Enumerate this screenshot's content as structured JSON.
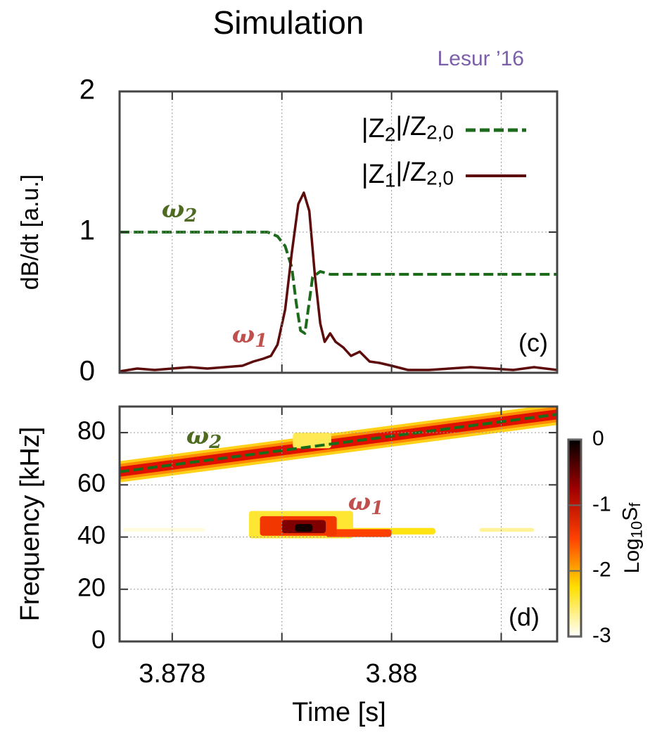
{
  "chart_data": [
    {
      "type": "line",
      "title": "Simulation",
      "subtitle": "Lesur ’16",
      "ylabel": "dB/dt [a.u.]",
      "panel_label": "(c)",
      "xlim": [
        3.87752,
        3.88151
      ],
      "xgrid": [
        3.878,
        3.879,
        3.88,
        3.881
      ],
      "ylim": [
        0,
        2
      ],
      "yticks": [
        0,
        1,
        2
      ],
      "grid": true,
      "legend": "upper right",
      "annotations": [
        {
          "text": "ω2",
          "color": "#4f6b22"
        },
        {
          "text": "ω1",
          "color": "#c0504d"
        }
      ],
      "series": [
        {
          "name": "|Z2|/Z2,0",
          "color": "#1b6b1b",
          "dashed": true,
          "x": [
            3.87752,
            3.87887,
            3.87896,
            3.87903,
            3.87909,
            3.87913,
            3.87917,
            3.87921,
            3.87924,
            3.87928,
            3.87935,
            3.87944,
            3.88151
          ],
          "values": [
            1,
            1,
            0.97,
            0.9,
            0.75,
            0.5,
            0.3,
            0.28,
            0.45,
            0.68,
            0.72,
            0.7,
            0.7
          ]
        },
        {
          "name": "|Z1|/Z2,0",
          "color": "#5c0a0a",
          "dashed": false,
          "x": [
            3.87752,
            3.87768,
            3.87784,
            3.878,
            3.87816,
            3.87832,
            3.87848,
            3.87864,
            3.87874,
            3.87883,
            3.8789,
            3.87896,
            3.87903,
            3.87909,
            3.87915,
            3.8792,
            3.87925,
            3.8793,
            3.87935,
            3.87939,
            3.87944,
            3.87949,
            3.87956,
            3.87963,
            3.87971,
            3.8798,
            3.87989,
            3.88,
            3.88015,
            3.88034,
            3.88053,
            3.88072,
            3.88092,
            3.88111,
            3.8813,
            3.88151
          ],
          "values": [
            0.01,
            0.03,
            0.02,
            0.03,
            0.04,
            0.03,
            0.04,
            0.05,
            0.08,
            0.1,
            0.12,
            0.2,
            0.45,
            0.85,
            1.2,
            1.28,
            1.15,
            0.7,
            0.35,
            0.22,
            0.28,
            0.22,
            0.18,
            0.12,
            0.15,
            0.08,
            0.07,
            0.05,
            0.02,
            0.02,
            0.03,
            0.04,
            0.03,
            0.02,
            0.04,
            0.02
          ]
        }
      ]
    },
    {
      "type": "heatmap",
      "xlabel": "Time [s]",
      "ylabel": "Frequency [kHz]",
      "panel_label": "(d)",
      "xlim": [
        3.87752,
        3.88151
      ],
      "xticks": [
        3.878,
        3.88
      ],
      "xgrid": [
        3.878,
        3.879,
        3.88,
        3.881
      ],
      "ylim": [
        0,
        90
      ],
      "yticks": [
        0,
        20,
        40,
        60,
        80
      ],
      "grid": true,
      "annotations": [
        {
          "text": "ω2",
          "color": "#4f6b22"
        },
        {
          "text": "ω1",
          "color": "#c0504d"
        }
      ],
      "series": [
        {
          "color": "#1b6b1b",
          "dashed": true,
          "x": [
            3.87752,
            3.88151
          ],
          "values": [
            65,
            87
          ]
        }
      ],
      "cells": [
        {
          "t": [
            3.87755,
            3.8783
          ],
          "f": [
            42,
            43.5
          ],
          "level": -2.9
        },
        {
          "t": [
            3.8796,
            3.8804
          ],
          "f": [
            41,
            43.5
          ],
          "level": -2.3
        },
        {
          "t": [
            3.8808,
            3.8813
          ],
          "f": [
            42,
            43.5
          ],
          "level": -2.7
        },
        {
          "t": [
            3.8791,
            3.87945
          ],
          "f": [
            74,
            80
          ],
          "level": -2.5
        },
        {
          "t": [
            3.8787,
            3.87965
          ],
          "f": [
            39.5,
            50
          ],
          "level": -2.4
        },
        {
          "t": [
            3.8794,
            3.88
          ],
          "f": [
            40,
            43
          ],
          "level": -1.5
        },
        {
          "t": [
            3.8788,
            3.8795
          ],
          "f": [
            40.5,
            48
          ],
          "level": -1.4
        },
        {
          "t": [
            3.879,
            3.8794
          ],
          "f": [
            41.5,
            46.5
          ],
          "level": -0.6
        },
        {
          "t": [
            3.87912,
            3.87928
          ],
          "f": [
            42,
            45
          ],
          "level": -0.1
        }
      ],
      "colorbar": {
        "label": "Log10Sf",
        "lim": [
          -3,
          0
        ],
        "ticks": [
          0,
          -1,
          -2,
          -3
        ],
        "colors": [
          "#ffffff",
          "#ffe000",
          "#ff4000",
          "#a00000",
          "#000000"
        ]
      }
    }
  ]
}
